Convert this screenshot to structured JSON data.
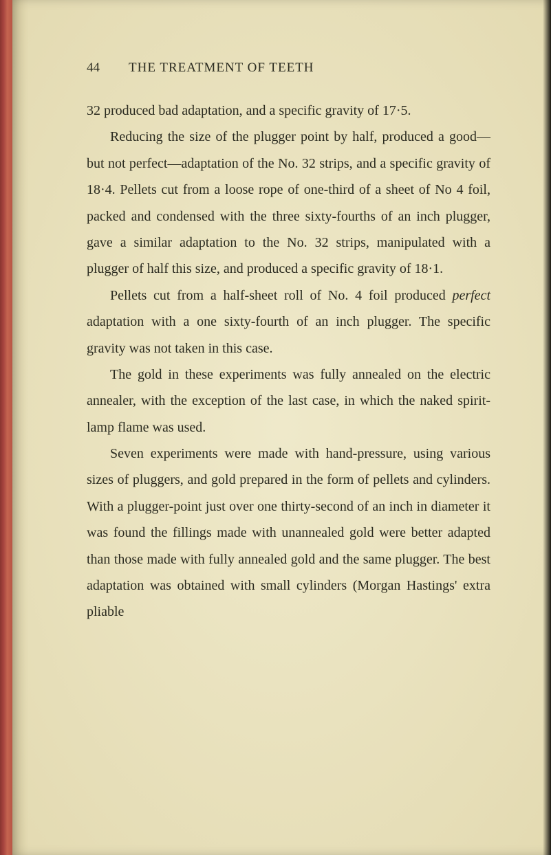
{
  "page": {
    "number": "44",
    "running_title": "THE TREATMENT OF TEETH",
    "paragraphs": [
      "32 produced bad adaptation, and a specific gravity of 17·5.",
      "Reducing the size of the plugger point by half, produced a good—but not perfect—adaptation of the No. 32 strips, and a specific gravity of 18·4. Pellets cut from a loose rope of one-third of a sheet of No 4 foil, packed and condensed with the three sixty-fourths of an inch plugger, gave a similar adaptation to the No. 32 strips, manipulated with a plugger of half this size, and produced a specific gravity of 18·1.",
      "Pellets cut from a half-sheet roll of No. 4 foil produced <em>perfect</em> adaptation with a one sixty-fourth of an inch plugger. The specific gravity was not taken in this case.",
      "The gold in these experiments was fully annealed on the electric annealer, with the exception of the last case, in which the naked spirit-lamp flame was used.",
      "Seven experiments were made with hand-pressure, using various sizes of pluggers, and gold prepared in the form of pellets and cylinders. With a plugger-point just over one thirty-second of an inch in diameter it was found the fillings made with unannealed gold were better adapted than those made with fully annealed gold and the same plugger. The best adaptation was obtained with small cylinders (Morgan Hastings' extra pliable"
    ]
  },
  "colors": {
    "page_bg": "#e8e0b8",
    "text": "#2b2b20",
    "spine": "#a84540",
    "outer_bg": "#2a2820"
  },
  "typography": {
    "header_fontsize": 19,
    "body_fontsize": 20,
    "line_height": 1.92,
    "text_indent": 34
  }
}
